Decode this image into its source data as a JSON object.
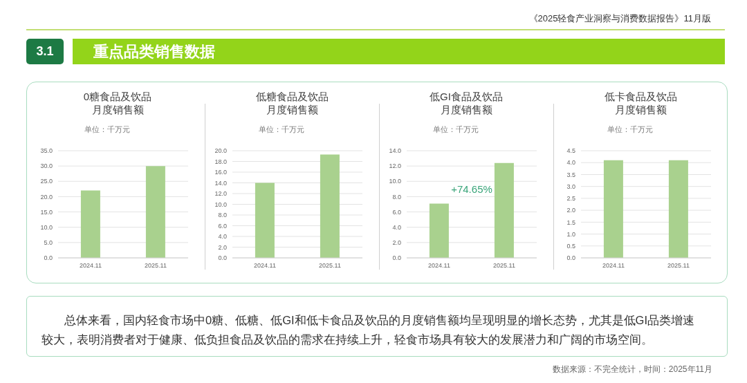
{
  "chart_data": [
    {
      "type": "other",
      "title": "重点品类销售数据",
      "subtitle": "《2025轻食产业洞察与消费数据报告》11月版",
      "annotations": [
        "3.1"
      ]
    },
    {
      "type": "bar",
      "title": "0糖食品及饮品月度销售额",
      "ylabel": "单位：千万元",
      "categories": [
        "2024.11",
        "2025.11"
      ],
      "values": [
        22.0,
        30.0
      ],
      "color": "#a9d18e",
      "ylim": [
        0,
        35
      ],
      "yticks": [
        {
          "value": 0,
          "label": "0.0"
        },
        {
          "value": 5,
          "label": "5.0"
        },
        {
          "value": 10,
          "label": "10.0"
        },
        {
          "value": 15,
          "label": "15.0"
        },
        {
          "value": 20,
          "label": "20.0"
        },
        {
          "value": 25,
          "label": "25.0"
        },
        {
          "value": 30,
          "label": "30.0"
        },
        {
          "value": 35,
          "label": "35.0"
        }
      ],
      "grid": "y"
    },
    {
      "type": "bar",
      "title": "低糖食品及饮品月度销售额",
      "ylabel": "单位：千万元",
      "categories": [
        "2024.11",
        "2025.11"
      ],
      "values": [
        14.0,
        19.3
      ],
      "color": "#a9d18e",
      "ylim": [
        0,
        20
      ],
      "yticks": [
        {
          "value": 0,
          "label": "0.0"
        },
        {
          "value": 2,
          "label": "2.0"
        },
        {
          "value": 4,
          "label": "4.0"
        },
        {
          "value": 6,
          "label": "6.0"
        },
        {
          "value": 8,
          "label": "8.0"
        },
        {
          "value": 10,
          "label": "10.0"
        },
        {
          "value": 12,
          "label": "12.0"
        },
        {
          "value": 14,
          "label": "14.0"
        },
        {
          "value": 16,
          "label": "16.0"
        },
        {
          "value": 18,
          "label": "18.0"
        },
        {
          "value": 20,
          "label": "20.0"
        }
      ],
      "grid": "y"
    },
    {
      "type": "bar",
      "title": "低GI食品及饮品月度销售额",
      "ylabel": "单位：千万元",
      "categories": [
        "2024.11",
        "2025.11"
      ],
      "values": [
        7.1,
        12.4
      ],
      "color": "#a9d18e",
      "ylim": [
        0,
        14
      ],
      "yticks": [
        {
          "value": 0,
          "label": "0.0"
        },
        {
          "value": 2,
          "label": "2.0"
        },
        {
          "value": 4,
          "label": "4.0"
        },
        {
          "value": 6,
          "label": "6.0"
        },
        {
          "value": 8,
          "label": "8.0"
        },
        {
          "value": 10,
          "label": "10.0"
        },
        {
          "value": 12,
          "label": "12.0"
        },
        {
          "value": 14,
          "label": "14.0"
        }
      ],
      "grid": "y",
      "annotations": [
        "+74.65%"
      ]
    },
    {
      "type": "bar",
      "title": "低卡食品及饮品月度销售额",
      "ylabel": "单位：千万元",
      "categories": [
        "2024.11",
        "2025.11"
      ],
      "values": [
        4.1,
        4.1
      ],
      "color": "#a9d18e",
      "ylim": [
        0,
        4.5
      ],
      "yticks": [
        {
          "value": 0,
          "label": "0.0"
        },
        {
          "value": 0.5,
          "label": "0.5"
        },
        {
          "value": 1,
          "label": "1.0"
        },
        {
          "value": 1.5,
          "label": "1.5"
        },
        {
          "value": 2,
          "label": "2.0"
        },
        {
          "value": 2.5,
          "label": "2.5"
        },
        {
          "value": 3,
          "label": "3.0"
        },
        {
          "value": 3.5,
          "label": "3.5"
        },
        {
          "value": 4,
          "label": "4.0"
        },
        {
          "value": 4.5,
          "label": "4.5"
        }
      ],
      "grid": "y"
    },
    {
      "type": "other",
      "annotations": [
        "总体来看，国内轻食市场中0糖、低糖、低GI和低卡食品及饮品的月度销售额均呈现明显的增长态势，尤其是低GI品类增速较大，表明消费者对于健康、低负担食品及饮品的需求在持续上升，轻食市场具有较大的发展潜力和广阔的市场空间。",
        "数据来源：不完全统计，时间：2025年11月"
      ]
    }
  ]
}
